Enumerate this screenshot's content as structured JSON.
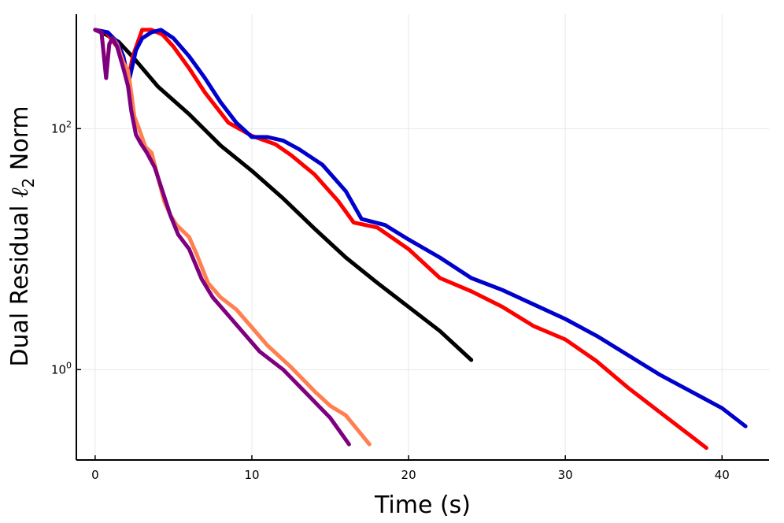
{
  "chart_data": {
    "type": "line",
    "title": "",
    "xlabel": "Time (s)",
    "ylabel_main": "Dual Residual ",
    "ylabel_symbol": "ℓ",
    "ylabel_subscript": "2",
    "ylabel_suffix": " Norm",
    "xscale": "linear",
    "yscale": "log10",
    "xlim": [
      -1.2,
      43
    ],
    "ylim_log10": [
      -0.75,
      2.95
    ],
    "xticks": [
      0,
      10,
      20,
      30,
      40
    ],
    "xtick_labels": [
      "0",
      "10",
      "20",
      "30",
      "40"
    ],
    "yticks_log10": [
      0,
      2
    ],
    "ytick_labels": [
      {
        "base": "10",
        "exp": "0"
      },
      {
        "base": "10",
        "exp": "2"
      }
    ],
    "grid": true,
    "legend": "none",
    "series": [
      {
        "name": "black",
        "color": "#000000",
        "x": [
          0.0,
          0.7,
          1.5,
          2.5,
          4.0,
          6.0,
          8.0,
          10.0,
          12.0,
          14.0,
          16.0,
          18.0,
          20.0,
          22.0,
          24.0
        ],
        "y_log10": [
          2.82,
          2.78,
          2.72,
          2.58,
          2.35,
          2.12,
          1.86,
          1.65,
          1.42,
          1.17,
          0.93,
          0.72,
          0.52,
          0.32,
          0.08
        ]
      },
      {
        "name": "red",
        "color": "#ff0000",
        "x": [
          0.0,
          0.7,
          1.4,
          1.8,
          2.1,
          2.4,
          3.0,
          3.6,
          4.3,
          5.0,
          6.0,
          7.0,
          8.5,
          10.0,
          11.5,
          12.5,
          14.0,
          15.5,
          16.5,
          18.0,
          20.0,
          22.0,
          24.0,
          26.0,
          28.0,
          30.0,
          32.0,
          34.0,
          36.0,
          38.0,
          39.0
        ],
        "y_log10": [
          2.82,
          2.8,
          2.68,
          2.55,
          2.4,
          2.6,
          2.82,
          2.82,
          2.78,
          2.68,
          2.5,
          2.3,
          2.05,
          1.94,
          1.87,
          1.78,
          1.62,
          1.4,
          1.22,
          1.18,
          1.0,
          0.76,
          0.65,
          0.52,
          0.36,
          0.25,
          0.07,
          -0.15,
          -0.35,
          -0.55,
          -0.65
        ]
      },
      {
        "name": "blue",
        "color": "#0000cc",
        "x": [
          0.0,
          0.8,
          1.4,
          1.8,
          2.0,
          2.2,
          2.6,
          3.0,
          3.6,
          4.2,
          5.0,
          6.0,
          7.0,
          8.0,
          9.0,
          10.0,
          11.0,
          12.0,
          13.0,
          14.5,
          16.0,
          17.0,
          18.5,
          20.0,
          22.0,
          24.0,
          26.0,
          28.0,
          30.0,
          32.0,
          34.0,
          36.0,
          38.0,
          40.0,
          41.5
        ],
        "y_log10": [
          2.82,
          2.8,
          2.72,
          2.6,
          2.48,
          2.42,
          2.65,
          2.75,
          2.8,
          2.82,
          2.75,
          2.6,
          2.42,
          2.22,
          2.05,
          1.93,
          1.93,
          1.9,
          1.83,
          1.7,
          1.48,
          1.25,
          1.2,
          1.08,
          0.93,
          0.76,
          0.66,
          0.54,
          0.42,
          0.28,
          0.12,
          -0.04,
          -0.18,
          -0.32,
          -0.47
        ]
      },
      {
        "name": "orange",
        "color": "#ff7f50",
        "x": [
          0.0,
          0.4,
          0.7,
          0.9,
          1.1,
          1.4,
          1.8,
          2.1,
          2.3,
          2.5,
          2.8,
          3.2,
          3.6,
          4.0,
          4.4,
          4.8,
          5.2,
          5.6,
          6.0,
          6.5,
          7.2,
          8.0,
          9.0,
          10.0,
          11.0,
          12.5,
          14.0,
          15.0,
          16.0,
          17.5
        ],
        "y_log10": [
          2.82,
          2.8,
          2.45,
          2.7,
          2.75,
          2.7,
          2.55,
          2.48,
          2.3,
          2.1,
          2.0,
          1.85,
          1.8,
          1.6,
          1.4,
          1.28,
          1.2,
          1.15,
          1.1,
          0.95,
          0.72,
          0.6,
          0.5,
          0.35,
          0.2,
          0.02,
          -0.18,
          -0.3,
          -0.38,
          -0.62
        ]
      },
      {
        "name": "purple",
        "color": "#7f007f",
        "x": [
          0.0,
          0.4,
          0.7,
          0.9,
          1.1,
          1.4,
          1.8,
          2.1,
          2.3,
          2.6,
          2.9,
          3.3,
          3.8,
          4.3,
          4.8,
          5.3,
          6.0,
          6.8,
          7.5,
          8.5,
          9.5,
          10.5,
          12.0,
          13.5,
          15.0,
          16.2
        ],
        "y_log10": [
          2.82,
          2.8,
          2.42,
          2.7,
          2.75,
          2.68,
          2.5,
          2.35,
          2.15,
          1.95,
          1.88,
          1.8,
          1.68,
          1.48,
          1.28,
          1.12,
          1.0,
          0.75,
          0.6,
          0.45,
          0.3,
          0.15,
          0.0,
          -0.2,
          -0.4,
          -0.62
        ]
      }
    ]
  }
}
